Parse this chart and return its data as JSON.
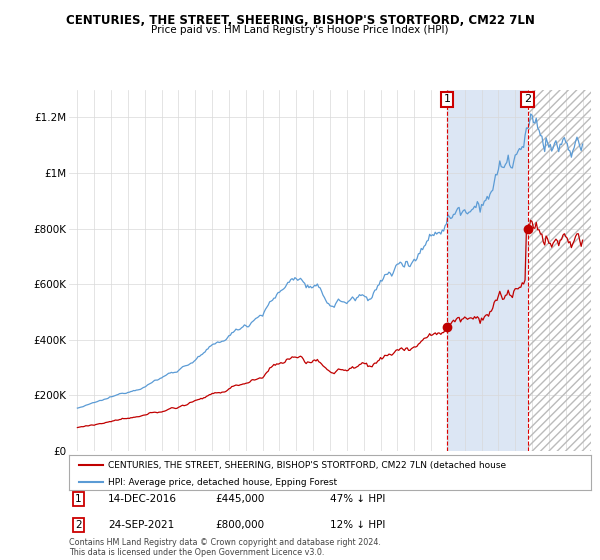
{
  "title": "CENTURIES, THE STREET, SHEERING, BISHOP'S STORTFORD, CM22 7LN",
  "subtitle": "Price paid vs. HM Land Registry's House Price Index (HPI)",
  "hpi_color": "#5b9bd5",
  "price_color": "#c00000",
  "grid_color": "#d9d9d9",
  "shade_color": "#dce6f4",
  "hatch_color": "#c0c0c0",
  "dashed_line_color": "#ff0000",
  "legend_text_red": "CENTURIES, THE STREET, SHEERING, BISHOP'S STORTFORD, CM22 7LN (detached house",
  "legend_text_blue": "HPI: Average price, detached house, Epping Forest",
  "footnote": "Contains HM Land Registry data © Crown copyright and database right 2024.\nThis data is licensed under the Open Government Licence v3.0.",
  "transaction1_label": "1",
  "transaction1_date": "14-DEC-2016",
  "transaction1_price": "£445,000",
  "transaction1_hpi": "47% ↓ HPI",
  "transaction2_label": "2",
  "transaction2_date": "24-SEP-2021",
  "transaction2_price": "£800,000",
  "transaction2_hpi": "12% ↓ HPI",
  "ylim": [
    0,
    1300000
  ],
  "yticks": [
    0,
    200000,
    400000,
    600000,
    800000,
    1000000,
    1200000
  ],
  "ytick_labels": [
    "£0",
    "£200K",
    "£400K",
    "£600K",
    "£800K",
    "£1M",
    "£1.2M"
  ],
  "t1_year": 2016.96,
  "t2_year": 2021.73,
  "t1_price": 445000,
  "t2_price": 800000
}
